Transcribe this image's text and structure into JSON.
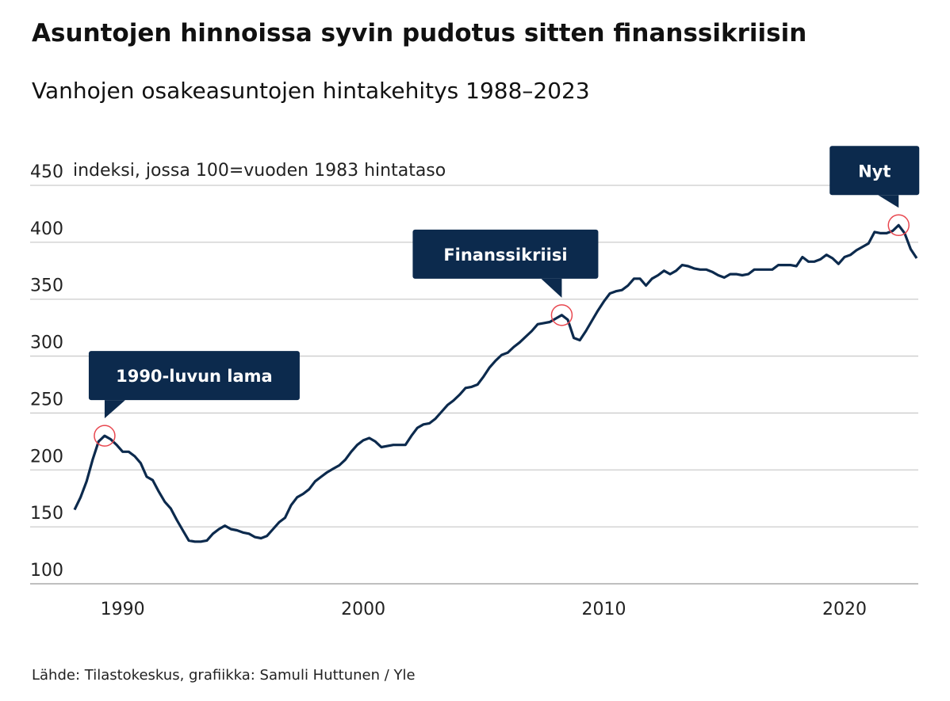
{
  "chart_data": {
    "type": "line",
    "title": "Asuntojen hinnoissa syvin pudotus sitten finanssikriisin",
    "subtitle": "Vanhojen osakeasuntojen hintakehitys 1988–2023",
    "ylabel": "indeksi, jossa 100=vuoden 1983 hintataso",
    "source": "Lähde: Tilastokeskus, grafiikka: Samuli Huttunen / Yle",
    "xlim": [
      1988,
      2023
    ],
    "xticks": [
      1990,
      2000,
      2010,
      2020
    ],
    "ylim": [
      100,
      450
    ],
    "yticks": [
      100,
      150,
      200,
      250,
      300,
      350,
      400,
      450
    ],
    "grid": true,
    "x": [
      1988,
      1988.25,
      1988.5,
      1988.75,
      1989,
      1989.25,
      1989.5,
      1989.75,
      1990,
      1990.25,
      1990.5,
      1990.75,
      1991,
      1991.25,
      1991.5,
      1991.75,
      1992,
      1992.25,
      1992.5,
      1992.75,
      1993,
      1993.25,
      1993.5,
      1993.75,
      1994,
      1994.25,
      1994.5,
      1994.75,
      1995,
      1995.25,
      1995.5,
      1995.75,
      1996,
      1996.25,
      1996.5,
      1996.75,
      1997,
      1997.25,
      1997.5,
      1997.75,
      1998,
      1998.25,
      1998.5,
      1998.75,
      1999,
      1999.25,
      1999.5,
      1999.75,
      2000,
      2000.25,
      2000.5,
      2000.75,
      2001,
      2001.25,
      2001.5,
      2001.75,
      2002,
      2002.25,
      2002.5,
      2002.75,
      2003,
      2003.25,
      2003.5,
      2003.75,
      2004,
      2004.25,
      2004.5,
      2004.75,
      2005,
      2005.25,
      2005.5,
      2005.75,
      2006,
      2006.25,
      2006.5,
      2006.75,
      2007,
      2007.25,
      2007.5,
      2007.75,
      2008,
      2008.25,
      2008.5,
      2008.75,
      2009,
      2009.25,
      2009.5,
      2009.75,
      2010,
      2010.25,
      2010.5,
      2010.75,
      2011,
      2011.25,
      2011.5,
      2011.75,
      2012,
      2012.25,
      2012.5,
      2012.75,
      2013,
      2013.25,
      2013.5,
      2013.75,
      2014,
      2014.25,
      2014.5,
      2014.75,
      2015,
      2015.25,
      2015.5,
      2015.75,
      2016,
      2016.25,
      2016.5,
      2016.75,
      2017,
      2017.25,
      2017.5,
      2017.75,
      2018,
      2018.25,
      2018.5,
      2018.75,
      2019,
      2019.25,
      2019.5,
      2019.75,
      2020,
      2020.25,
      2020.5,
      2020.75,
      2021,
      2021.25,
      2021.5,
      2021.75,
      2022,
      2022.25,
      2022.5,
      2022.75,
      2023
    ],
    "series": [
      {
        "color": "#0c2a4d",
        "values": [
          165,
          176,
          190,
          209,
          225,
          230,
          227,
          222,
          216,
          216,
          212,
          206,
          194,
          191,
          181,
          172,
          166,
          156,
          147,
          138,
          137,
          137,
          138,
          144,
          148,
          151,
          148,
          147,
          145,
          144,
          141,
          140,
          142,
          148,
          154,
          158,
          169,
          176,
          179,
          183,
          190,
          194,
          198,
          201,
          204,
          209,
          216,
          222,
          226,
          228,
          225,
          220,
          221,
          222,
          222,
          222,
          230,
          237,
          240,
          241,
          245,
          251,
          257,
          261,
          266,
          272,
          273,
          275,
          282,
          290,
          296,
          301,
          303,
          308,
          312,
          317,
          322,
          328,
          329,
          330,
          333,
          336,
          332,
          316,
          314,
          322,
          331,
          340,
          348,
          355,
          357,
          358,
          362,
          368,
          368,
          362,
          368,
          371,
          375,
          372,
          375,
          380,
          379,
          377,
          376,
          376,
          374,
          371,
          369,
          372,
          372,
          371,
          372,
          376,
          376,
          376,
          376,
          380,
          380,
          380,
          379,
          387,
          383,
          383,
          385,
          389,
          386,
          381,
          387,
          389,
          393,
          396,
          399,
          409,
          408,
          408,
          410,
          415,
          408,
          394,
          386
        ]
      }
    ],
    "annotations": [
      {
        "text": "1990-luvun lama",
        "x": 1989.25
      },
      {
        "text": "Finanssikriisi",
        "x": 2008.25
      },
      {
        "text": "Nyt",
        "x": 2022.25
      }
    ]
  }
}
